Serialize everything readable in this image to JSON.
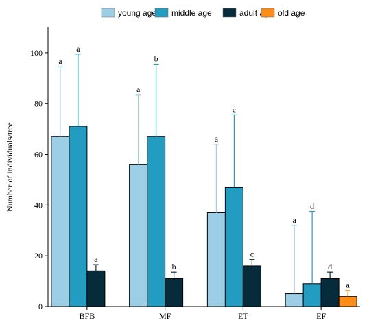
{
  "chart_data": {
    "type": "bar",
    "ylabel": "Number of individuals/tree",
    "xlabel": "",
    "ylim": [
      0,
      110
    ],
    "yticks": [
      0,
      20,
      40,
      60,
      80,
      100
    ],
    "categories": [
      "BFB",
      "MF",
      "ET",
      "EF"
    ],
    "legend_position": "top",
    "series": [
      {
        "name": "young age",
        "color": "#9ccfe5",
        "values": [
          67,
          56,
          37,
          5
        ],
        "errors": [
          27.5,
          27.5,
          27,
          27
        ],
        "letters": [
          "a",
          "a",
          "a",
          "a"
        ]
      },
      {
        "name": "middle age",
        "color": "#229cc1",
        "values": [
          71,
          67,
          47,
          9
        ],
        "errors": [
          28.5,
          28.5,
          28.5,
          28.5
        ],
        "letters": [
          "a",
          "b",
          "c",
          "d"
        ]
      },
      {
        "name": "adult age",
        "color": "#062c3c",
        "values": [
          14,
          11,
          16,
          11
        ],
        "errors": [
          2.5,
          2.5,
          2.5,
          2.5
        ],
        "letters": [
          "a",
          "b",
          "c",
          "d"
        ]
      },
      {
        "name": "old age",
        "color": "#ff8c16",
        "values": [
          null,
          null,
          null,
          4
        ],
        "errors": [
          null,
          null,
          null,
          2.3
        ],
        "letters": [
          null,
          null,
          null,
          "a"
        ]
      }
    ]
  }
}
